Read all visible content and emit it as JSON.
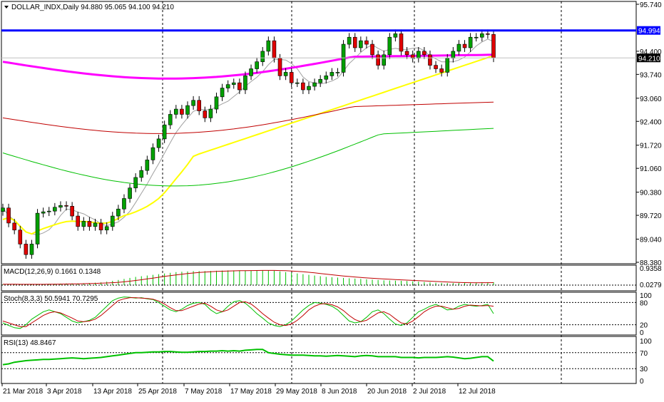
{
  "chart_data": {
    "type": "candlestick",
    "title": "DOLLAR_INDX,Daily",
    "ohlc_header": "94.880 95.065 94.100 94.210",
    "x_labels": [
      "21 Mar 2018",
      "3 Apr 2018",
      "13 Apr 2018",
      "25 Apr 2018",
      "7 May 2018",
      "17 May 2018",
      "29 May 2018",
      "8 Jun 2018",
      "20 Jun 2018",
      "2 Jul 2018",
      "12 Jul 2018"
    ],
    "y_ticks": [
      "95.740",
      "94.400",
      "93.740",
      "93.060",
      "92.400",
      "91.720",
      "91.060",
      "90.380",
      "89.720",
      "89.040",
      "88.380"
    ],
    "ylim": [
      88.38,
      95.74
    ],
    "hline_level": "94.994",
    "current_price": "94.210",
    "hline_value": 94.994,
    "current_value": 94.21,
    "closes": [
      89.93,
      89.5,
      89.3,
      88.9,
      88.6,
      88.9,
      89.78,
      89.82,
      89.84,
      89.95,
      90.0,
      89.98,
      89.7,
      89.4,
      89.55,
      89.4,
      89.5,
      89.3,
      89.4,
      89.7,
      89.9,
      90.2,
      90.5,
      90.8,
      91.0,
      91.3,
      91.65,
      91.9,
      92.3,
      92.6,
      92.75,
      92.6,
      92.85,
      93.0,
      92.7,
      92.5,
      92.75,
      93.1,
      93.35,
      93.45,
      93.5,
      93.3,
      93.7,
      93.9,
      94.1,
      94.4,
      94.7,
      94.2,
      93.7,
      93.8,
      93.5,
      93.5,
      93.3,
      93.4,
      93.5,
      93.6,
      93.7,
      93.8,
      93.8,
      94.6,
      94.8,
      94.5,
      94.7,
      94.6,
      94.3,
      94.0,
      94.3,
      94.8,
      94.9,
      94.4,
      94.3,
      94.2,
      94.4,
      94.3,
      94.0,
      93.9,
      93.8,
      94.2,
      94.4,
      94.6,
      94.5,
      94.8,
      94.8,
      94.9,
      94.88,
      94.21
    ],
    "panels": {
      "macd": {
        "label": "MACD(12,26,9) 0.1661 0.1348",
        "ticks": [
          "0.9358",
          "0.0279"
        ],
        "ylim": [
          0,
          1.0
        ]
      },
      "stoch": {
        "label": "Stoch(8,3,3) 50.5941 70.7295",
        "ticks": [
          "100",
          "80",
          "20",
          "0"
        ],
        "ylim": [
          0,
          100
        ]
      },
      "rsi": {
        "label": "RSI(13) 48.8467",
        "ticks": [
          "100",
          "70",
          "30",
          "0"
        ],
        "ylim": [
          0,
          100
        ],
        "values": [
          40,
          42,
          46,
          48,
          50,
          51,
          52,
          53,
          53,
          54,
          55,
          56,
          57,
          56,
          55,
          56,
          57,
          58,
          60,
          62,
          64,
          66,
          68,
          70,
          70,
          71,
          72,
          72,
          73,
          73,
          72,
          71,
          71,
          72,
          73,
          73,
          74,
          74,
          75,
          74,
          75,
          74,
          76,
          77,
          78,
          78,
          70,
          68,
          66,
          65,
          64,
          64,
          64,
          63,
          62,
          62,
          61,
          62,
          63,
          62,
          61,
          60,
          62,
          63,
          62,
          60,
          60,
          60,
          60,
          58,
          58,
          58,
          57,
          58,
          58,
          58,
          59,
          60,
          59,
          57,
          55,
          56,
          58,
          60,
          60,
          49
        ]
      },
      "stoch_k": [
        25,
        18,
        12,
        10,
        20,
        35,
        45,
        55,
        60,
        55,
        50,
        40,
        30,
        25,
        28,
        32,
        40,
        55,
        70,
        85,
        92,
        95,
        94,
        92,
        93,
        90,
        88,
        80,
        70,
        60,
        55,
        62,
        72,
        78,
        80,
        75,
        60,
        50,
        55,
        70,
        82,
        85,
        78,
        65,
        50,
        38,
        25,
        18,
        15,
        20,
        30,
        45,
        60,
        72,
        80,
        78,
        75,
        70,
        60,
        45,
        30,
        25,
        28,
        40,
        55,
        60,
        50,
        35,
        22,
        18,
        25,
        40,
        55,
        62,
        70,
        75,
        68,
        60,
        62,
        70,
        75,
        72,
        70,
        72,
        75,
        50
      ],
      "stoch_d": [
        30,
        25,
        20,
        15,
        15,
        25,
        35,
        45,
        52,
        55,
        52,
        45,
        38,
        30,
        28,
        30,
        35,
        45,
        58,
        72,
        85,
        90,
        93,
        93,
        92,
        91,
        89,
        84,
        76,
        66,
        58,
        58,
        64,
        70,
        76,
        78,
        70,
        60,
        55,
        60,
        70,
        80,
        82,
        76,
        64,
        50,
        38,
        27,
        20,
        18,
        22,
        32,
        45,
        60,
        70,
        76,
        77,
        74,
        68,
        58,
        45,
        34,
        28,
        32,
        42,
        52,
        55,
        48,
        36,
        25,
        22,
        30,
        42,
        55,
        64,
        70,
        70,
        66,
        62,
        64,
        70,
        73,
        72,
        71,
        72,
        70
      ],
      "macd_hist": [
        0.05,
        0.05,
        0.05,
        0.04,
        0.04,
        0.04,
        0.05,
        0.06,
        0.07,
        0.08,
        0.09,
        0.1,
        0.1,
        0.1,
        0.11,
        0.12,
        0.14,
        0.16,
        0.2,
        0.25,
        0.3,
        0.36,
        0.42,
        0.48,
        0.52,
        0.56,
        0.6,
        0.64,
        0.68,
        0.72,
        0.76,
        0.78,
        0.8,
        0.82,
        0.82,
        0.82,
        0.83,
        0.84,
        0.85,
        0.86,
        0.86,
        0.86,
        0.86,
        0.86,
        0.86,
        0.86,
        0.86,
        0.84,
        0.8,
        0.76,
        0.72,
        0.68,
        0.64,
        0.6,
        0.56,
        0.52,
        0.48,
        0.46,
        0.44,
        0.42,
        0.4,
        0.38,
        0.36,
        0.34,
        0.32,
        0.3,
        0.28,
        0.27,
        0.26,
        0.25,
        0.24,
        0.22,
        0.2,
        0.18,
        0.16,
        0.14,
        0.13,
        0.12,
        0.12,
        0.13,
        0.14,
        0.15,
        0.16,
        0.17,
        0.17,
        0.17
      ]
    },
    "moving_averages": [
      {
        "color": "#ff00ff",
        "values_desc": "200"
      },
      {
        "color": "#ffff00",
        "values_desc": "50"
      },
      {
        "color": "#c00000",
        "values_desc": "100"
      },
      {
        "color": "#00c000",
        "values_desc": "150"
      },
      {
        "color": "#a0a0a0",
        "values_desc": "20"
      }
    ]
  }
}
